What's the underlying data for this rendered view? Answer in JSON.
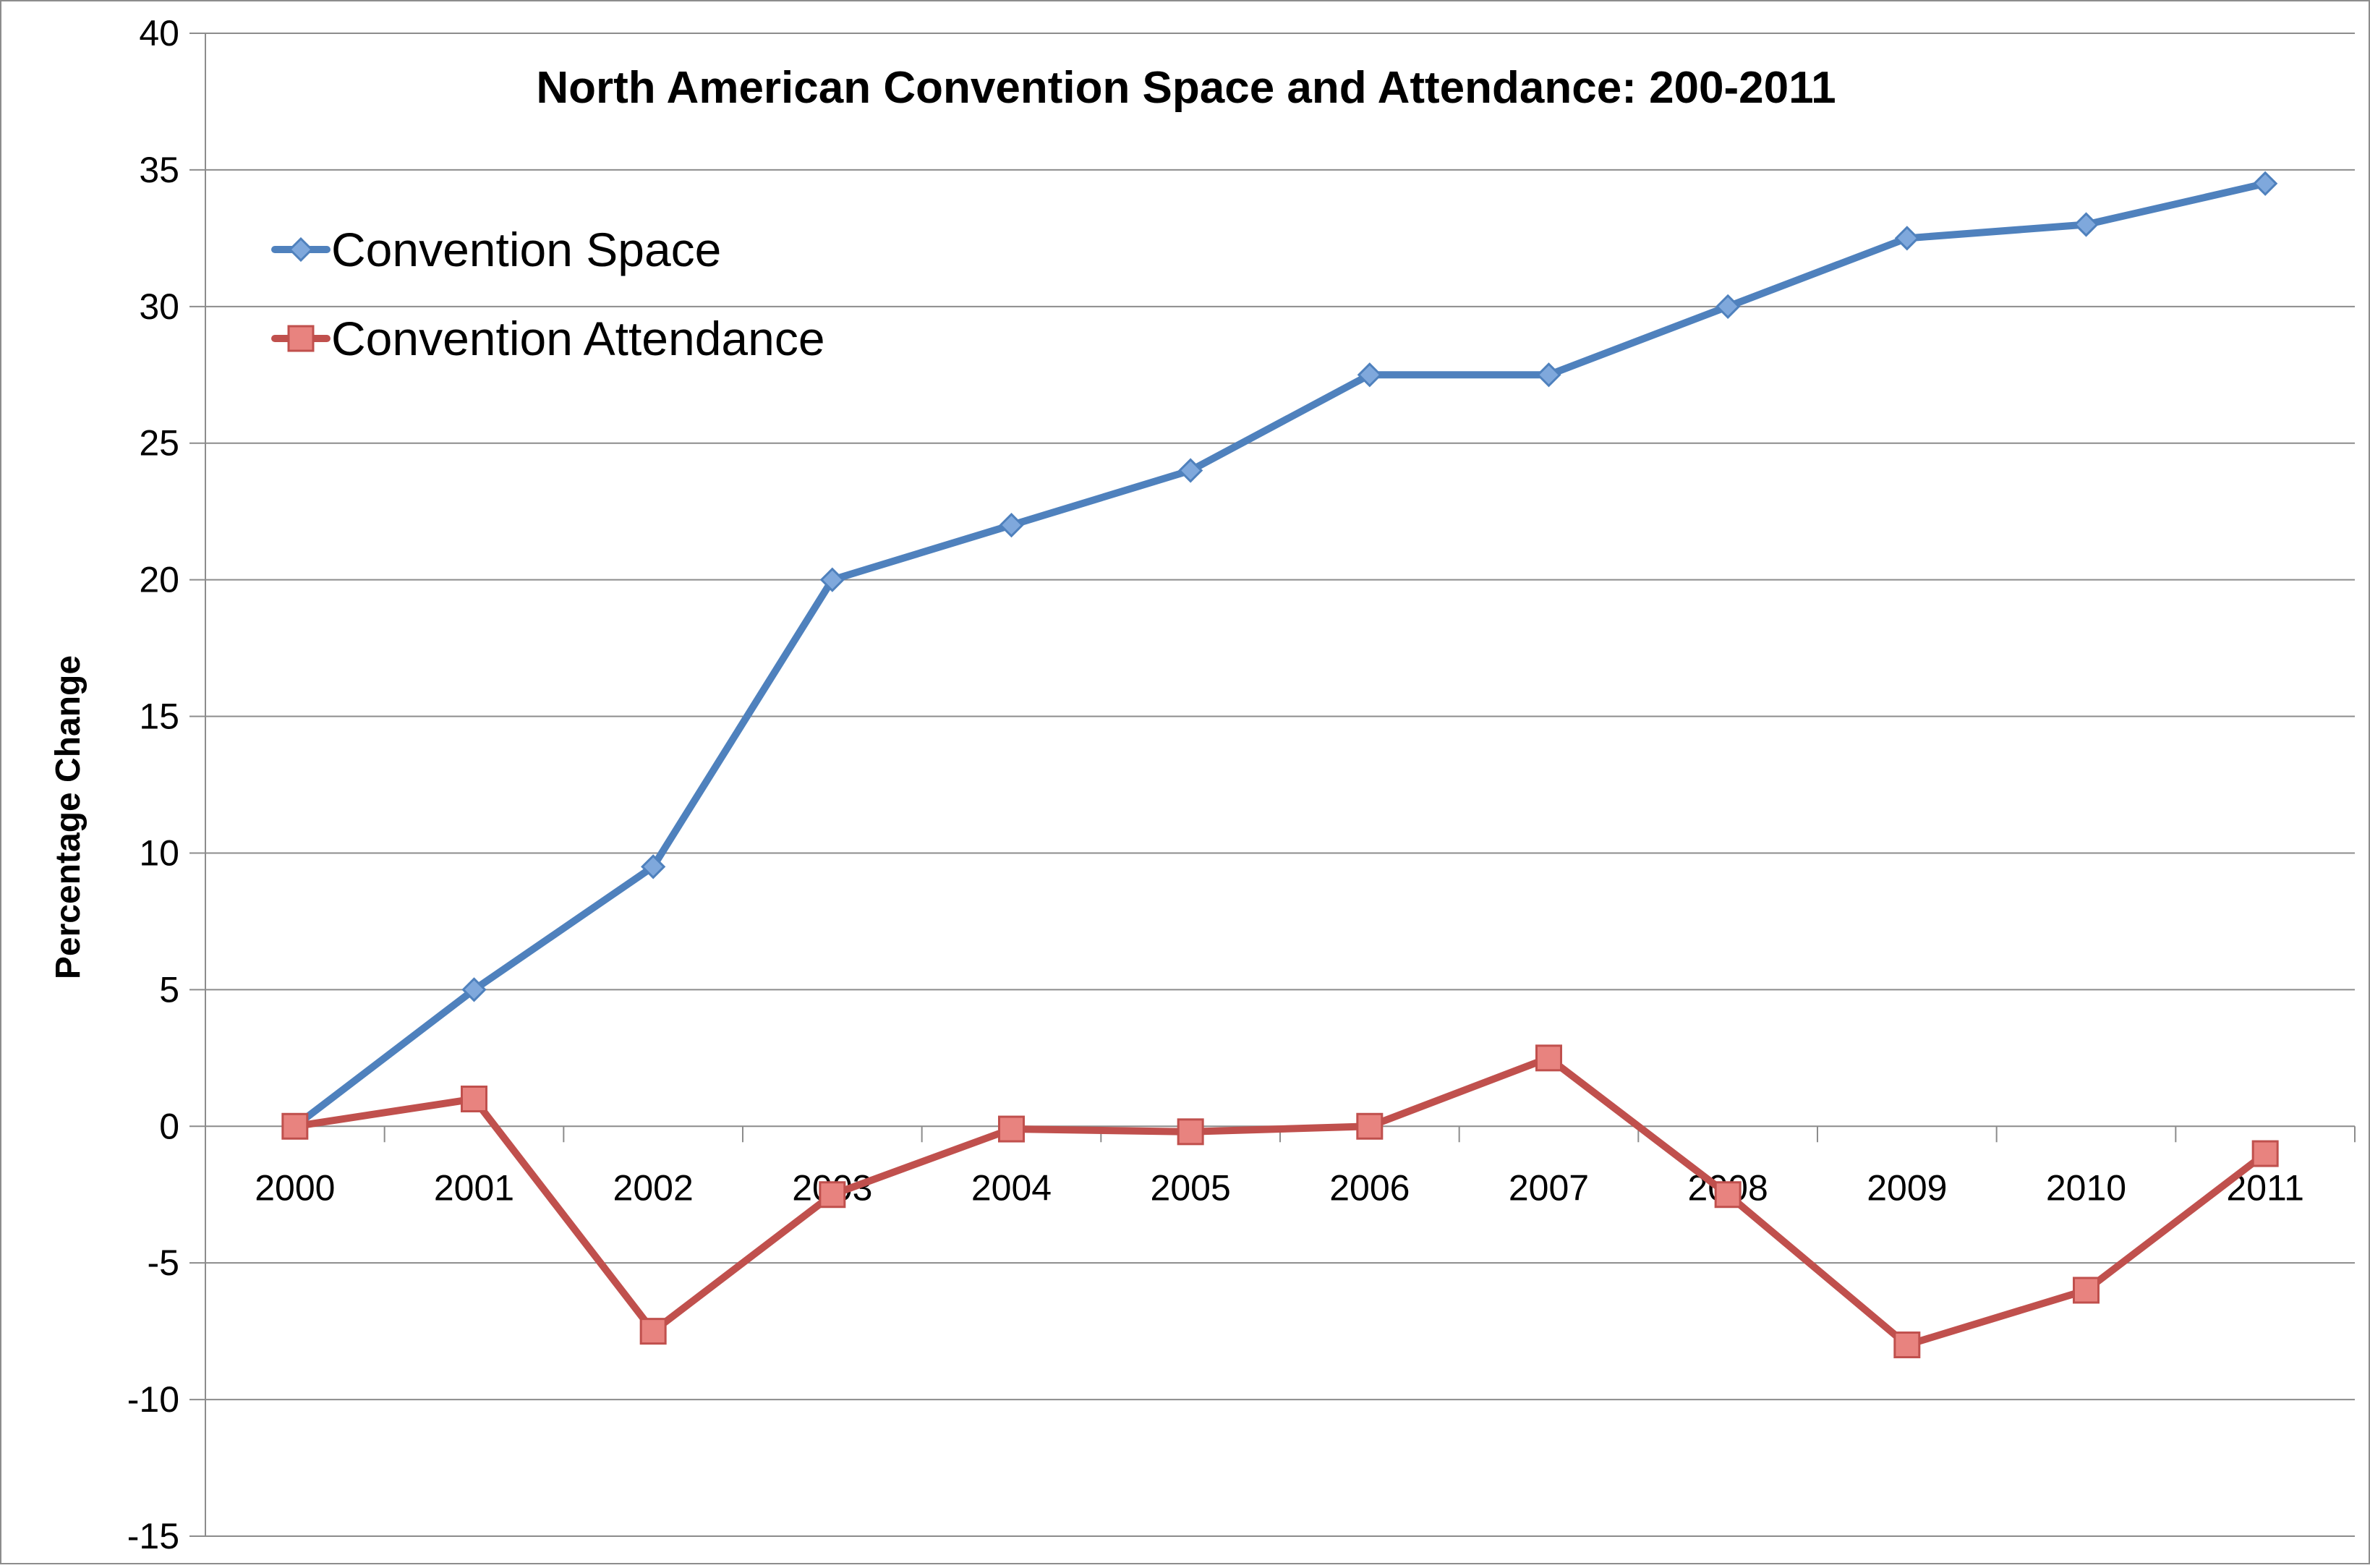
{
  "chart_data": {
    "type": "line",
    "title": "North American Convention Space and Attendance: 200-2011",
    "xlabel": "",
    "ylabel": "Percentage Change",
    "categories": [
      "2000",
      "2001",
      "2002",
      "2003",
      "2004",
      "2005",
      "2006",
      "2007",
      "2008",
      "2009",
      "2010",
      "2011"
    ],
    "ylim": [
      -15,
      40
    ],
    "yticks": [
      40,
      35,
      30,
      25,
      20,
      15,
      10,
      5,
      0,
      -5,
      -10,
      -15
    ],
    "grid": true,
    "legend_position": "top-left",
    "series": [
      {
        "name": "Convention Space",
        "marker": "diamond",
        "color": "#4f81bd",
        "values": [
          0,
          5,
          9.5,
          20,
          22,
          24,
          27.5,
          27.5,
          30,
          32.5,
          33,
          34.5
        ]
      },
      {
        "name": "Convention Attendance",
        "marker": "square",
        "color": "#c0504d",
        "values": [
          0,
          1,
          -7.5,
          -2.5,
          -0.1,
          -0.2,
          0,
          2.5,
          -2.5,
          -8,
          -6,
          -1
        ]
      }
    ]
  }
}
